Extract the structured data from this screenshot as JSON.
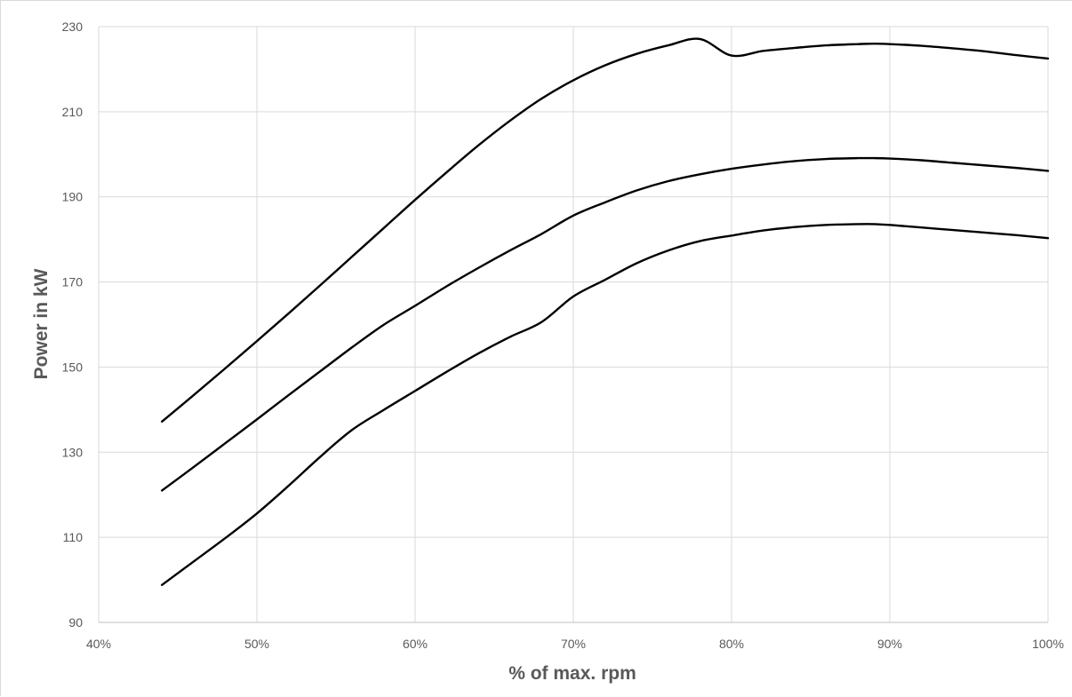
{
  "chart_data": {
    "type": "line",
    "title": "",
    "xlabel": "% of max. rpm",
    "ylabel": "Power in kW",
    "xlim": [
      40,
      100
    ],
    "ylim": [
      90,
      230
    ],
    "x_ticks": [
      40,
      50,
      60,
      70,
      80,
      90,
      100
    ],
    "x_tick_labels": [
      "40%",
      "50%",
      "60%",
      "70%",
      "80%",
      "90%",
      "100%"
    ],
    "y_ticks": [
      90,
      110,
      130,
      150,
      170,
      190,
      210,
      230
    ],
    "y_tick_labels": [
      "90",
      "110",
      "130",
      "150",
      "170",
      "190",
      "210",
      "230"
    ],
    "grid": true,
    "legend": "none",
    "line_color": "#000000",
    "grid_color": "#d9d9d9",
    "series": [
      {
        "x": [
          44,
          46,
          48,
          50,
          52,
          54,
          56,
          58,
          60,
          62,
          64,
          66,
          68,
          70,
          72,
          74,
          76,
          78,
          80,
          82,
          84,
          86,
          88,
          89,
          90,
          92,
          94,
          96,
          98,
          100
        ],
        "values": [
          137.2,
          143.4,
          149.7,
          156.1,
          162.6,
          169.2,
          175.9,
          182.6,
          189.3,
          195.8,
          202.1,
          207.9,
          213.1,
          217.4,
          220.9,
          223.6,
          225.6,
          227.1,
          223.2,
          224.3,
          225.0,
          225.6,
          225.9,
          226.0,
          225.9,
          225.5,
          224.9,
          224.2,
          223.3,
          222.5
        ]
      },
      {
        "x": [
          44,
          46,
          48,
          50,
          52,
          54,
          56,
          58,
          60,
          62,
          64,
          66,
          68,
          70,
          72,
          74,
          76,
          78,
          80,
          82,
          84,
          86,
          88,
          89,
          90,
          92,
          94,
          96,
          98,
          100
        ],
        "values": [
          121.0,
          126.5,
          132.1,
          137.7,
          143.4,
          149.0,
          154.6,
          159.9,
          164.4,
          169.0,
          173.3,
          177.4,
          181.3,
          185.6,
          188.7,
          191.5,
          193.7,
          195.3,
          196.6,
          197.6,
          198.4,
          198.9,
          199.1,
          199.1,
          199.0,
          198.6,
          198.0,
          197.4,
          196.8,
          196.1
        ]
      },
      {
        "x": [
          44,
          46,
          48,
          50,
          52,
          54,
          56,
          58,
          60,
          62,
          64,
          66,
          68,
          70,
          72,
          74,
          76,
          78,
          80,
          82,
          84,
          86,
          88,
          89,
          90,
          92,
          94,
          96,
          98,
          100
        ],
        "values": [
          98.8,
          104.3,
          109.8,
          115.6,
          122.1,
          128.9,
          135.2,
          139.9,
          144.4,
          148.9,
          153.2,
          157.1,
          160.6,
          166.6,
          170.5,
          174.4,
          177.4,
          179.6,
          180.9,
          182.1,
          182.9,
          183.4,
          183.6,
          183.6,
          183.4,
          182.8,
          182.2,
          181.6,
          181.0,
          180.3
        ]
      }
    ]
  }
}
